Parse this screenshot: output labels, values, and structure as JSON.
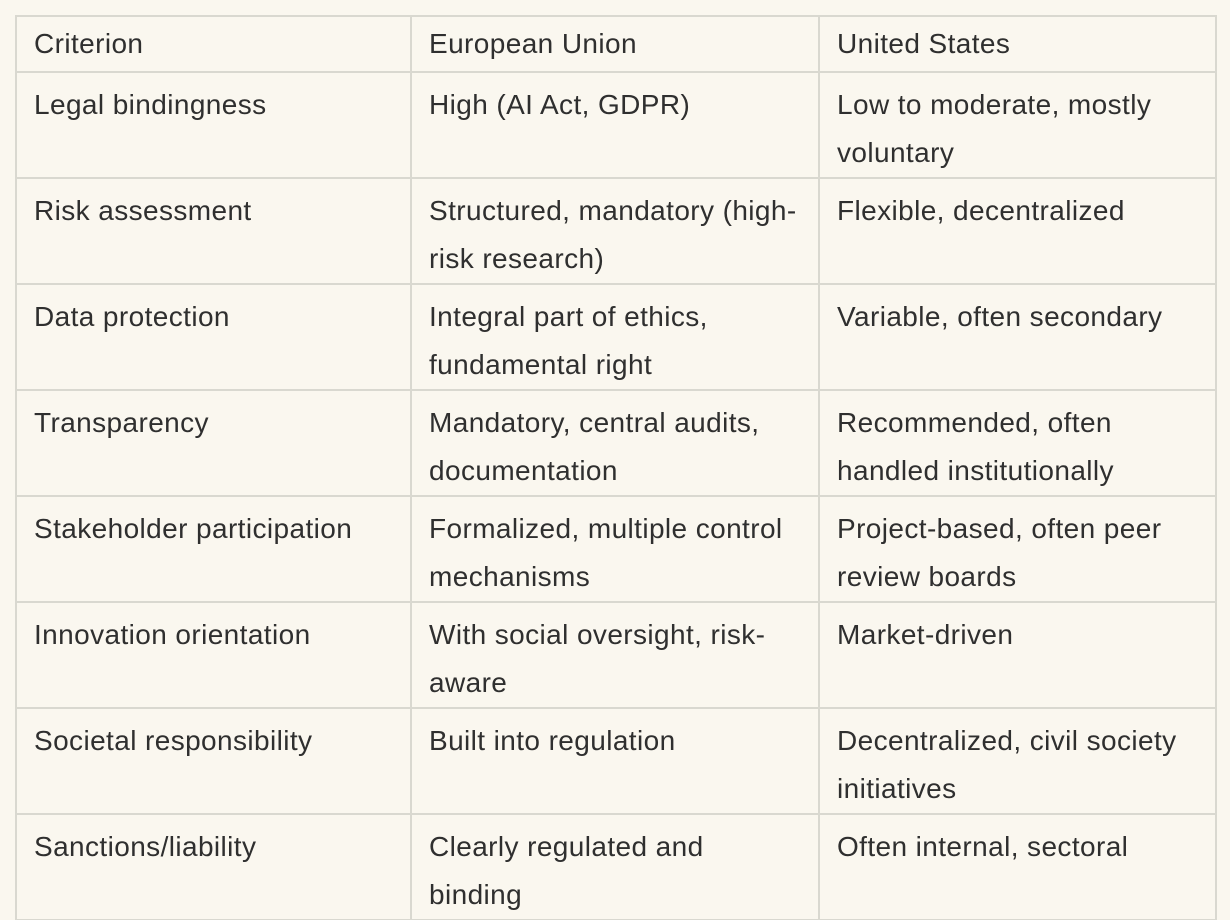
{
  "page": {
    "background_color": "#FAF7EF",
    "border_color": "#D9D8D0",
    "text_color": "#2F2F2F"
  },
  "table": {
    "columns": [
      "Criterion",
      "European Union",
      "United States"
    ],
    "rows": [
      {
        "criterion": "Legal bindingness",
        "eu": "High (AI Act, GDPR)",
        "us": "Low to moderate, mostly voluntary"
      },
      {
        "criterion": "Risk assessment",
        "eu": "Structured, mandatory (high-risk research)",
        "us": "Flexible, decentralized"
      },
      {
        "criterion": "Data protection",
        "eu": "Integral part of ethics, fundamental right",
        "us": "Variable, often secondary"
      },
      {
        "criterion": "Transparency",
        "eu": "Mandatory, central audits, documentation",
        "us": "Recommended, often handled institutionally"
      },
      {
        "criterion": "Stakeholder participation",
        "eu": "Formalized, multiple control mechanisms",
        "us": "Project-based, often peer review boards"
      },
      {
        "criterion": "Innovation orientation",
        "eu": "With social oversight, risk-aware",
        "us": "Market-driven"
      },
      {
        "criterion": "Societal responsibility",
        "eu": "Built into regulation",
        "us": "Decentralized, civil society initiatives"
      },
      {
        "criterion": "Sanctions/liability",
        "eu": "Clearly regulated and binding",
        "us": "Often internal, sectoral"
      }
    ]
  }
}
